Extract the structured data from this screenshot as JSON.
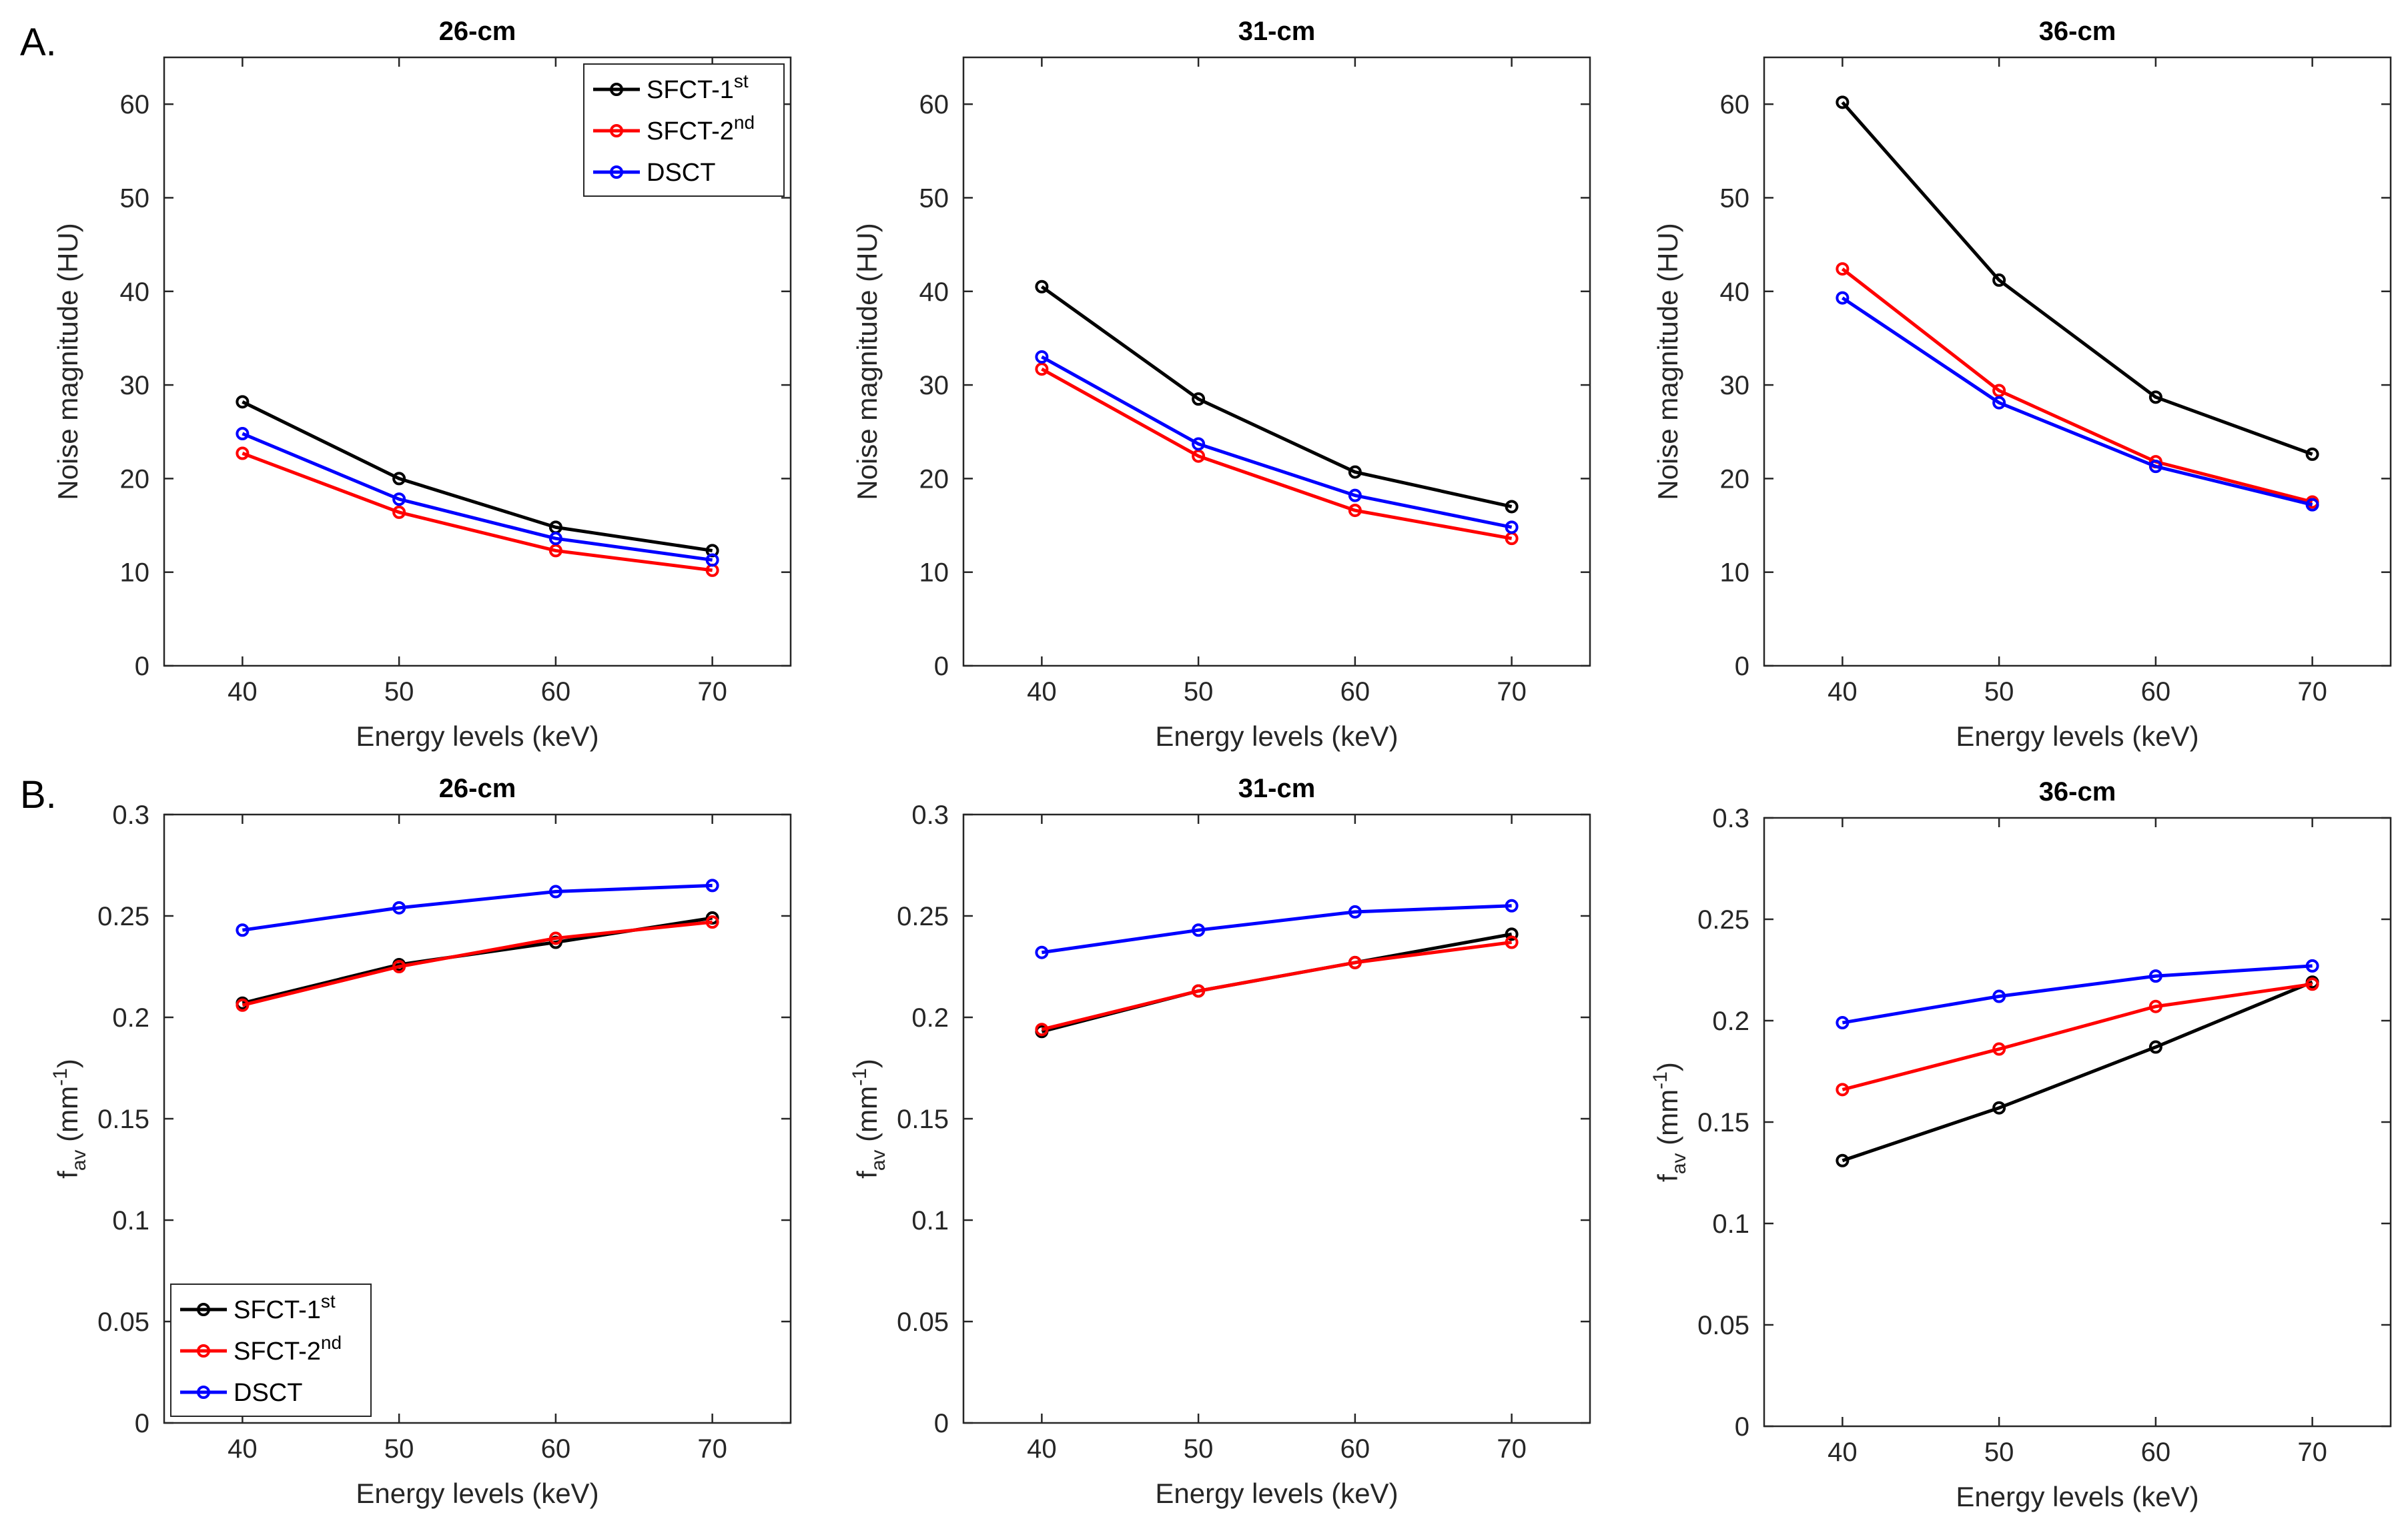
{
  "panel_labels": [
    "A.",
    "B."
  ],
  "colors": {
    "SFCT-1st": "#000000",
    "SFCT-2nd": "#ff0000",
    "DSCT": "#0000ff"
  },
  "legend_entries": [
    {
      "key": "SFCT-1st",
      "base": "SFCT-1",
      "sup": "st"
    },
    {
      "key": "SFCT-2nd",
      "base": "SFCT-2",
      "sup": "nd"
    },
    {
      "key": "DSCT",
      "base": "DSCT",
      "sup": ""
    }
  ],
  "chart_data": [
    {
      "type": "line",
      "row": "A",
      "title": "26-cm",
      "xlabel": "Energy levels (keV)",
      "ylabel": "Noise magnitude (HU)",
      "x": [
        40,
        50,
        60,
        70
      ],
      "xlim": [
        35,
        75
      ],
      "ylim": [
        0,
        65
      ],
      "xticks": [
        "40",
        "50",
        "60",
        "70"
      ],
      "yticks": [
        "0",
        "10",
        "20",
        "30",
        "40",
        "50",
        "60"
      ],
      "legend": "top-right",
      "series": [
        {
          "name": "SFCT-1st",
          "values": [
            28.2,
            20.0,
            14.8,
            12.3
          ]
        },
        {
          "name": "SFCT-2nd",
          "values": [
            22.7,
            16.4,
            12.3,
            10.2
          ]
        },
        {
          "name": "DSCT",
          "values": [
            24.8,
            17.8,
            13.6,
            11.3
          ]
        }
      ]
    },
    {
      "type": "line",
      "row": "A",
      "title": "31-cm",
      "xlabel": "Energy levels (keV)",
      "ylabel": "Noise magnitude (HU)",
      "x": [
        40,
        50,
        60,
        70
      ],
      "xlim": [
        35,
        75
      ],
      "ylim": [
        0,
        65
      ],
      "xticks": [
        "40",
        "50",
        "60",
        "70"
      ],
      "yticks": [
        "0",
        "10",
        "20",
        "30",
        "40",
        "50",
        "60"
      ],
      "legend": "none",
      "series": [
        {
          "name": "SFCT-1st",
          "values": [
            40.5,
            28.5,
            20.7,
            17.0
          ]
        },
        {
          "name": "SFCT-2nd",
          "values": [
            31.7,
            22.4,
            16.6,
            13.6
          ]
        },
        {
          "name": "DSCT",
          "values": [
            33.0,
            23.7,
            18.2,
            14.8
          ]
        }
      ]
    },
    {
      "type": "line",
      "row": "A",
      "title": "36-cm",
      "xlabel": "Energy levels (keV)",
      "ylabel": "Noise magnitude (HU)",
      "x": [
        40,
        50,
        60,
        70
      ],
      "xlim": [
        35,
        75
      ],
      "ylim": [
        0,
        65
      ],
      "xticks": [
        "40",
        "50",
        "60",
        "70"
      ],
      "yticks": [
        "0",
        "10",
        "20",
        "30",
        "40",
        "50",
        "60"
      ],
      "legend": "none",
      "series": [
        {
          "name": "SFCT-1st",
          "values": [
            60.2,
            41.2,
            28.7,
            22.6
          ]
        },
        {
          "name": "SFCT-2nd",
          "values": [
            42.4,
            29.4,
            21.8,
            17.5
          ]
        },
        {
          "name": "DSCT",
          "values": [
            39.3,
            28.1,
            21.3,
            17.2
          ]
        }
      ]
    },
    {
      "type": "line",
      "row": "B",
      "title": "26-cm",
      "xlabel": "Energy levels (keV)",
      "ylabel_base": "f",
      "ylabel_sub": "av",
      "ylabel_unit": "(mm",
      "ylabel_sup": "-1",
      "ylabel_close": ")",
      "x": [
        40,
        50,
        60,
        70
      ],
      "xlim": [
        35,
        75
      ],
      "ylim": [
        0,
        0.3
      ],
      "xticks": [
        "40",
        "50",
        "60",
        "70"
      ],
      "yticks": [
        "0",
        "0.05",
        "0.1",
        "0.15",
        "0.2",
        "0.25",
        "0.3"
      ],
      "legend": "bottom-left",
      "series": [
        {
          "name": "SFCT-1st",
          "values": [
            0.207,
            0.226,
            0.237,
            0.249
          ]
        },
        {
          "name": "SFCT-2nd",
          "values": [
            0.206,
            0.225,
            0.239,
            0.247
          ]
        },
        {
          "name": "DSCT",
          "values": [
            0.243,
            0.254,
            0.262,
            0.265
          ]
        }
      ]
    },
    {
      "type": "line",
      "row": "B",
      "title": "31-cm",
      "xlabel": "Energy levels (keV)",
      "ylabel_base": "f",
      "ylabel_sub": "av",
      "ylabel_unit": "(mm",
      "ylabel_sup": "-1",
      "ylabel_close": ")",
      "x": [
        40,
        50,
        60,
        70
      ],
      "xlim": [
        35,
        75
      ],
      "ylim": [
        0,
        0.3
      ],
      "xticks": [
        "40",
        "50",
        "60",
        "70"
      ],
      "yticks": [
        "0",
        "0.05",
        "0.1",
        "0.15",
        "0.2",
        "0.25",
        "0.3"
      ],
      "legend": "none",
      "series": [
        {
          "name": "SFCT-1st",
          "values": [
            0.193,
            0.213,
            0.227,
            0.241
          ]
        },
        {
          "name": "SFCT-2nd",
          "values": [
            0.194,
            0.213,
            0.227,
            0.237
          ]
        },
        {
          "name": "DSCT",
          "values": [
            0.232,
            0.243,
            0.252,
            0.255
          ]
        }
      ]
    },
    {
      "type": "line",
      "row": "B",
      "title": "36-cm",
      "xlabel": "Energy levels (keV)",
      "ylabel_base": "f",
      "ylabel_sub": "av",
      "ylabel_unit": "(mm",
      "ylabel_sup": "-1",
      "ylabel_close": ")",
      "x": [
        40,
        50,
        60,
        70
      ],
      "xlim": [
        35,
        75
      ],
      "ylim": [
        0,
        0.3
      ],
      "xticks": [
        "40",
        "50",
        "60",
        "70"
      ],
      "yticks": [
        "0",
        "0.05",
        "0.1",
        "0.15",
        "0.2",
        "0.25",
        "0.3"
      ],
      "legend": "none",
      "series": [
        {
          "name": "SFCT-1st",
          "values": [
            0.131,
            0.157,
            0.187,
            0.219
          ]
        },
        {
          "name": "SFCT-2nd",
          "values": [
            0.166,
            0.186,
            0.207,
            0.218
          ]
        },
        {
          "name": "DSCT",
          "values": [
            0.199,
            0.212,
            0.222,
            0.227
          ]
        }
      ]
    }
  ]
}
